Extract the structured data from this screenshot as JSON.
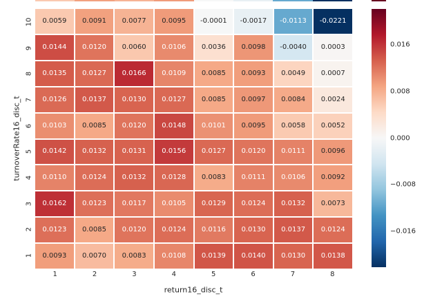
{
  "figure": {
    "background": "#ffffff",
    "axis_text_color": "#262626",
    "grid_line_color": "#ffffff"
  },
  "chart_data": {
    "type": "heatmap",
    "title": "",
    "xlabel": "return16_disc_t",
    "ylabel": "turnoverRate16_disc_t",
    "x_tick_labels": [
      "1",
      "2",
      "3",
      "4",
      "5",
      "6",
      "7",
      "8"
    ],
    "y_tick_labels": [
      "10",
      "9",
      "8",
      "7",
      "6",
      "5",
      "4",
      "3",
      "2",
      "1"
    ],
    "rows": [
      [
        0.0059,
        0.0091,
        0.0077,
        0.0095,
        -0.0001,
        -0.0017,
        -0.0113,
        -0.0221
      ],
      [
        0.0144,
        0.012,
        0.006,
        0.0106,
        0.0036,
        0.0098,
        -0.004,
        0.0003
      ],
      [
        0.0135,
        0.0127,
        0.0166,
        0.0109,
        0.0085,
        0.0093,
        0.0049,
        0.0007
      ],
      [
        0.0126,
        0.0137,
        0.013,
        0.0127,
        0.0085,
        0.0097,
        0.0084,
        0.0024
      ],
      [
        0.0103,
        0.0085,
        0.012,
        0.0148,
        0.0101,
        0.0095,
        0.0058,
        0.0052
      ],
      [
        0.0142,
        0.0132,
        0.0131,
        0.0156,
        0.0127,
        0.012,
        0.0111,
        0.0096
      ],
      [
        0.011,
        0.0124,
        0.0132,
        0.0128,
        0.0083,
        0.0111,
        0.0106,
        0.0092
      ],
      [
        0.0162,
        0.0123,
        0.0117,
        0.0105,
        0.0129,
        0.0124,
        0.0132,
        0.0073
      ],
      [
        0.0123,
        0.0085,
        0.012,
        0.0124,
        0.0116,
        0.013,
        0.0137,
        0.0124
      ],
      [
        0.0093,
        0.007,
        0.0083,
        0.0108,
        0.0139,
        0.014,
        0.013,
        0.0138
      ]
    ],
    "value_decimals": 4,
    "vmin": -0.0221,
    "vmax": 0.0221,
    "legend_position": "colorbar-right",
    "grid": false,
    "colormap": {
      "name": "RdBu_r",
      "stops_low_to_high": [
        "#053061",
        "#2166ac",
        "#4393c3",
        "#92c5de",
        "#d1e5f0",
        "#f7f7f7",
        "#fddbc7",
        "#f4a582",
        "#d6604d",
        "#b2182b",
        "#67001f"
      ]
    },
    "colorbar": {
      "tick_values": [
        0.016,
        0.008,
        0.0,
        -0.008,
        -0.016
      ],
      "tick_labels": [
        "0.016",
        "0.008",
        "0.000",
        "−0.008",
        "−0.016"
      ]
    },
    "annotation_colors": {
      "dark": "#262626",
      "light": "#ffffff"
    }
  }
}
